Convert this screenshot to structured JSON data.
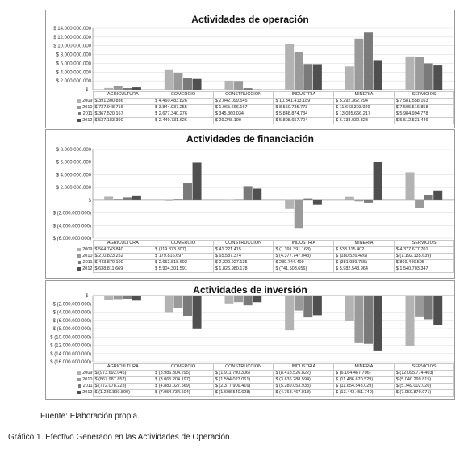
{
  "source_note": "Fuente: Elaboración propia.",
  "caption": "Gráfico 1. Efectivo Generado en las Actividades de Operación.",
  "colors": {
    "2009": "#b3b3b3",
    "2010": "#9a9a9a",
    "2011": "#7a7a7a",
    "2012": "#4f4f4f",
    "grid": "#dddddd",
    "zero": "#999999"
  },
  "chart_data": [
    {
      "type": "bar",
      "title": "Actividades de operación",
      "categories": [
        "AGRICULTURA",
        "COMERCIO",
        "CONSTRUCCIÓN",
        "INDUSTRIA",
        "MINERÍA",
        "SERVICIOS"
      ],
      "ylim": [
        0,
        14000000000
      ],
      "yticks": [
        "$ -",
        "$ 2.000.000.000",
        "$ 4.000.000.000",
        "$ 6.000.000.000",
        "$ 8.000.000.000",
        "$ 10.000.000.000",
        "$ 12.000.000.000",
        "$ 14.000.000.000"
      ],
      "grid": true,
      "legend": "table",
      "series": [
        {
          "name": "2009",
          "values": [
            391300836,
            4460483826,
            2042099545,
            10341413189,
            5292362294,
            7581558163
          ],
          "labels": [
            "$ 391.300.836",
            "$ 4.460.483.826",
            "$ 2.042.099.545",
            "$ 10.341.413.189",
            "$ 5.292.362.294",
            "$ 7.581.558.163"
          ]
        },
        {
          "name": "2010",
          "values": [
            737948716,
            3844937255,
            1965666167,
            8550735773,
            11643303929,
            7505516858
          ],
          "labels": [
            "$ 737.948.716",
            "$ 3.844.937.255",
            "$ 1.965.666.167",
            "$ 8.550.735.773",
            "$ 11.643.303.929",
            "$ 7.505.516.858"
          ]
        },
        {
          "name": "2011",
          "values": [
            367520167,
            2677340276,
            345360034,
            5848874734,
            13035666217,
            5984994778
          ],
          "labels": [
            "$ 367.520.167",
            "$ 2.677.340.276",
            "$ 345.360.034",
            "$ 5.848.874.734",
            "$ 13.035.666.217",
            "$ 5.984.994.778"
          ]
        },
        {
          "name": "2012",
          "values": [
            537183390,
            2449731626,
            29248190,
            5808657704,
            6738032328,
            5512531446
          ],
          "labels": [
            "$ 537.183.390",
            "$ 2.449.731.626",
            "$ 29.248.190",
            "$ 5.808.657.704",
            "$ 6.738.032.328",
            "$ 5.512.531.446"
          ]
        }
      ]
    },
    {
      "type": "bar",
      "title": "Actividades de financiación",
      "categories": [
        "AGRICULTURA",
        "COMERCIO",
        "CONSTRUCCIÓN",
        "INDUSTRIA",
        "MINERÍA",
        "SERVICIOS"
      ],
      "ylim": [
        -6000000000,
        8000000000
      ],
      "yticks": [
        "$ (6.000.000.000)",
        "$ (4.000.000.000)",
        "$ (2.000.000.000)",
        "$",
        "$ 2.000.000.000",
        "$ 4.000.000.000",
        "$ 6.000.000.000",
        "$ 8.000.000.000"
      ],
      "grid": true,
      "legend": "table",
      "series": [
        {
          "name": "2009",
          "values": [
            564743840,
            -119873807,
            41221415,
            -1391391168,
            533315402,
            4377677701
          ],
          "labels": [
            "$ 564.743.840",
            "$ (119.873.807)",
            "$ 41.221.415",
            "$ (1.391.391.168)",
            "$ 533.315.402",
            "$ 4.377.677.701"
          ]
        },
        {
          "name": "2010",
          "values": [
            210823252,
            179816697,
            65587374,
            -4377747048,
            -180526426,
            -1192135639
          ],
          "labels": [
            "$ 210.823.252",
            "$ 179.816.697",
            "$ 65.587.374",
            "$ (4.377.747.048)",
            "$ (180.526.426)",
            "$ (1.192.135.639)"
          ]
        },
        {
          "name": "2011",
          "values": [
            443870100,
            2652818692,
            2220927135,
            289744409,
            -381989755,
            869446595
          ],
          "labels": [
            "$ 443.870.100",
            "$ 2.652.818.692",
            "$ 2.220.927.135",
            "$ 289.744.409",
            "$ (381.989.755)",
            "$ 869.446.595"
          ]
        },
        {
          "name": "2012",
          "values": [
            638811669,
            5904301591,
            1826980178,
            -741503656,
            5982543964,
            1540703347
          ],
          "labels": [
            "$ 638.811.669",
            "$ 5.904.301.591",
            "$ 1.826.980.178",
            "$ (741.503.656)",
            "$ 5.982.543.964",
            "$ 1.540.703.347"
          ]
        }
      ]
    },
    {
      "type": "bar",
      "title": "Actividades de inversión",
      "categories": [
        "AGRICULTURA",
        "COMERCIO",
        "CONSTRUCCIÓN",
        "INDUSTRIA",
        "MINERÍA",
        "SERVICIOS"
      ],
      "ylim": [
        -16000000000,
        0
      ],
      "yticks": [
        "$ (16.000.000.000)",
        "$ (14.000.000.000)",
        "$ (12.000.000.000)",
        "$ (10.000.000.000)",
        "$ (8.000.000.000)",
        "$ (6.000.000.000)",
        "$ (4.000.000.000)",
        "$ (2.000.000.000)",
        "$ -"
      ],
      "grid": true,
      "legend": "table",
      "series": [
        {
          "name": "2009",
          "values": [
            -973692045,
            -3986304295,
            -1911790306,
            -8418526822,
            -6164467706,
            -12095774403
          ],
          "labels": [
            "$ (973.692.045)",
            "$ (3.986.304.295)",
            "$ (1.911.790.306)",
            "$ (8.418.526.822)",
            "$ (6.164.467.706)",
            "$ (12.095.774.403)"
          ]
        },
        {
          "name": "2010",
          "values": [
            -867987857,
            -3065204197,
            -1594023061,
            -3636288594,
            -11486670529,
            -5040299815
          ],
          "labels": [
            "$ (867.987.857)",
            "$ (3.065.204.197)",
            "$ (1.594.023.061)",
            "$ (3.636.288.594)",
            "$ (11.486.670.529)",
            "$ (5.040.299.815)"
          ]
        },
        {
          "name": "2011",
          "values": [
            -772078223,
            -4880027569,
            -2377909416,
            -5289053938,
            -11654543029,
            -5749002020
          ],
          "labels": [
            "$ (772.078.223)",
            "$ (4.880.027.569)",
            "$ (2.377.909.416)",
            "$ (5.289.053.938)",
            "$ (11.654.543.029)",
            "$ (5.749.002.020)"
          ]
        },
        {
          "name": "2012",
          "values": [
            -1230899890,
            -7954734504,
            -1608540628,
            -4763467018,
            -13442451740,
            -7050870971
          ],
          "labels": [
            "$ (1.230.899.890)",
            "$ (7.954.734.504)",
            "$ (1.608.540.628)",
            "$ (4.763.467.018)",
            "$ (13.442.451.740)",
            "$ (7.050.870.971)"
          ]
        }
      ]
    }
  ]
}
